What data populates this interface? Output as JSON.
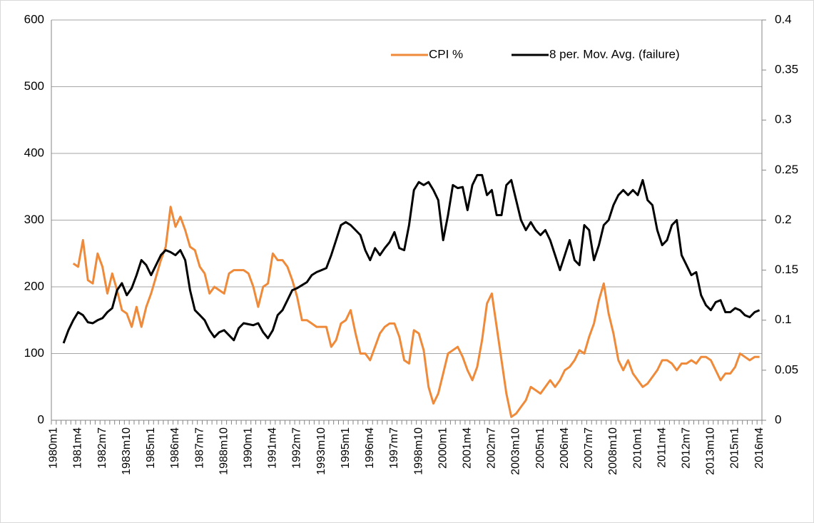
{
  "chart_data": {
    "type": "line",
    "categories": [
      "1980m1",
      null,
      null,
      null,
      null,
      "1981m4",
      null,
      null,
      null,
      null,
      "1982m7",
      null,
      null,
      null,
      null,
      "1983m10",
      null,
      null,
      null,
      null,
      "1985m1",
      null,
      null,
      null,
      null,
      "1986m4",
      null,
      null,
      null,
      null,
      "1987m7",
      null,
      null,
      null,
      null,
      "1988m10",
      null,
      null,
      null,
      null,
      "1990m1",
      null,
      null,
      null,
      null,
      "1991m4",
      null,
      null,
      null,
      null,
      "1992m7",
      null,
      null,
      null,
      null,
      "1993m10",
      null,
      null,
      null,
      null,
      "1995m1",
      null,
      null,
      null,
      null,
      "1996m4",
      null,
      null,
      null,
      null,
      "1997m7",
      null,
      null,
      null,
      null,
      "1998m10",
      null,
      null,
      null,
      null,
      "2000m1",
      null,
      null,
      null,
      null,
      "2001m4",
      null,
      null,
      null,
      null,
      "2002m7",
      null,
      null,
      null,
      null,
      "2003m10",
      null,
      null,
      null,
      null,
      "2005m1",
      null,
      null,
      null,
      null,
      "2006m4",
      null,
      null,
      null,
      null,
      "2007m7",
      null,
      null,
      null,
      null,
      "2008m10",
      null,
      null,
      null,
      null,
      "2010m1",
      null,
      null,
      null,
      null,
      "2011m4",
      null,
      null,
      null,
      null,
      "2012m7",
      null,
      null,
      null,
      null,
      "2013m10",
      null,
      null,
      null,
      null,
      "2015m1",
      null,
      null,
      null,
      null,
      "2016m4"
    ],
    "series": [
      {
        "name": "CPI %",
        "color": "#ee8a3a",
        "axis": "y",
        "values": [
          null,
          null,
          null,
          null,
          235,
          230,
          270,
          210,
          205,
          250,
          230,
          190,
          220,
          195,
          165,
          160,
          140,
          170,
          140,
          170,
          190,
          215,
          240,
          260,
          320,
          290,
          305,
          285,
          260,
          255,
          230,
          220,
          190,
          200,
          195,
          190,
          220,
          225,
          225,
          225,
          220,
          200,
          170,
          200,
          205,
          250,
          240,
          240,
          230,
          210,
          185,
          150,
          150,
          145,
          140,
          140,
          140,
          110,
          120,
          145,
          150,
          165,
          130,
          100,
          100,
          90,
          110,
          130,
          140,
          145,
          145,
          125,
          90,
          85,
          135,
          130,
          105,
          50,
          25,
          40,
          70,
          100,
          105,
          110,
          95,
          75,
          60,
          80,
          120,
          175,
          190,
          140,
          90,
          40,
          5,
          10,
          20,
          30,
          50,
          45,
          40,
          50,
          60,
          50,
          60,
          75,
          80,
          90,
          105,
          100,
          125,
          145,
          180,
          205,
          160,
          130,
          90,
          75,
          90,
          70,
          60,
          50,
          55,
          65,
          75,
          90,
          90,
          85,
          75,
          85,
          85,
          90,
          85,
          95,
          95,
          90,
          75,
          60,
          70,
          70,
          80,
          100,
          95,
          90,
          95,
          95
        ]
      },
      {
        "name": "8 per. Mov. Avg. (failure)",
        "color": "#000000",
        "axis": "y2",
        "values": [
          null,
          null,
          0.077,
          0.09,
          0.1,
          0.108,
          0.105,
          0.098,
          0.097,
          0.1,
          0.102,
          0.108,
          0.112,
          0.13,
          0.137,
          0.125,
          0.132,
          0.145,
          0.16,
          0.155,
          0.145,
          0.155,
          0.165,
          0.17,
          0.168,
          0.165,
          0.17,
          0.16,
          0.13,
          0.11,
          0.105,
          0.1,
          0.09,
          0.083,
          0.088,
          0.09,
          0.085,
          0.08,
          0.092,
          0.097,
          0.096,
          0.095,
          0.097,
          0.088,
          0.082,
          0.09,
          0.105,
          0.11,
          0.12,
          0.13,
          0.132,
          0.135,
          0.138,
          0.145,
          0.148,
          0.15,
          0.152,
          0.165,
          0.18,
          0.195,
          0.198,
          0.195,
          0.19,
          0.185,
          0.17,
          0.16,
          0.172,
          0.165,
          0.172,
          0.178,
          0.188,
          0.172,
          0.17,
          0.195,
          0.23,
          0.238,
          0.235,
          0.238,
          0.23,
          0.22,
          0.18,
          0.205,
          0.235,
          0.232,
          0.233,
          0.21,
          0.235,
          0.245,
          0.245,
          0.225,
          0.23,
          0.205,
          0.205,
          0.235,
          0.24,
          0.22,
          0.2,
          0.19,
          0.198,
          0.19,
          0.185,
          0.19,
          0.18,
          0.165,
          0.15,
          0.165,
          0.18,
          0.16,
          0.155,
          0.195,
          0.19,
          0.16,
          0.175,
          0.195,
          0.2,
          0.215,
          0.225,
          0.23,
          0.225,
          0.23,
          0.225,
          0.24,
          0.22,
          0.215,
          0.19,
          0.175,
          0.18,
          0.195,
          0.2,
          0.165,
          0.155,
          0.145,
          0.148,
          0.125,
          0.115,
          0.11,
          0.118,
          0.12,
          0.108,
          0.108,
          0.112,
          0.11,
          0.105,
          0.103,
          0.108,
          0.11
        ]
      }
    ],
    "ylim": [
      0,
      600
    ],
    "yticks": [
      0,
      100,
      200,
      300,
      400,
      500,
      600
    ],
    "y2lim": [
      0,
      0.4
    ],
    "y2ticks": [
      0,
      0.05,
      0.1,
      0.15,
      0.2,
      0.25,
      0.3,
      0.35,
      0.4
    ],
    "grid": true,
    "legend": "top-right"
  }
}
